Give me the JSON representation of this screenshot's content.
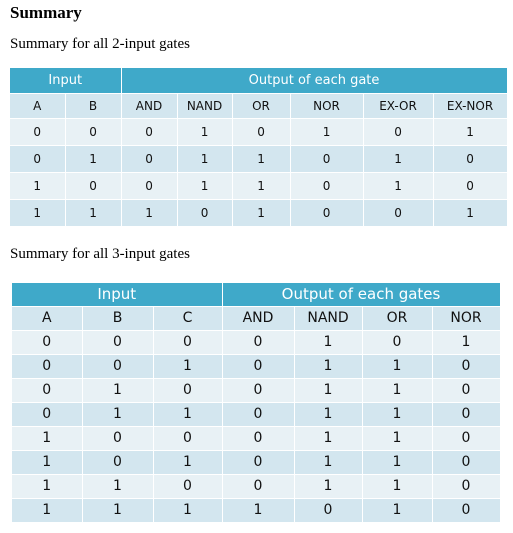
{
  "heading": "Summary",
  "table1": {
    "caption": "Summary for all 2-input gates",
    "group_headers": [
      "Input",
      "Output of each gate"
    ],
    "columns": [
      "A",
      "B",
      "AND",
      "NAND",
      "OR",
      "NOR",
      "EX-OR",
      "EX-NOR"
    ],
    "rows": [
      [
        "0",
        "0",
        "0",
        "1",
        "0",
        "1",
        "0",
        "1"
      ],
      [
        "0",
        "1",
        "0",
        "1",
        "1",
        "0",
        "1",
        "0"
      ],
      [
        "1",
        "0",
        "0",
        "1",
        "1",
        "0",
        "1",
        "0"
      ],
      [
        "1",
        "1",
        "1",
        "0",
        "1",
        "0",
        "0",
        "1"
      ]
    ]
  },
  "table2": {
    "caption": "Summary for all 3-input gates",
    "group_headers": [
      "Input",
      "Output of each gates"
    ],
    "columns": [
      "A",
      "B",
      "C",
      "AND",
      "NAND",
      "OR",
      "NOR"
    ],
    "rows": [
      [
        "0",
        "0",
        "0",
        "0",
        "1",
        "0",
        "1"
      ],
      [
        "0",
        "0",
        "1",
        "0",
        "1",
        "1",
        "0"
      ],
      [
        "0",
        "1",
        "0",
        "0",
        "1",
        "1",
        "0"
      ],
      [
        "0",
        "1",
        "1",
        "0",
        "1",
        "1",
        "0"
      ],
      [
        "1",
        "0",
        "0",
        "0",
        "1",
        "1",
        "0"
      ],
      [
        "1",
        "0",
        "1",
        "0",
        "1",
        "1",
        "0"
      ],
      [
        "1",
        "1",
        "0",
        "0",
        "1",
        "1",
        "0"
      ],
      [
        "1",
        "1",
        "1",
        "1",
        "0",
        "1",
        "0"
      ]
    ]
  }
}
